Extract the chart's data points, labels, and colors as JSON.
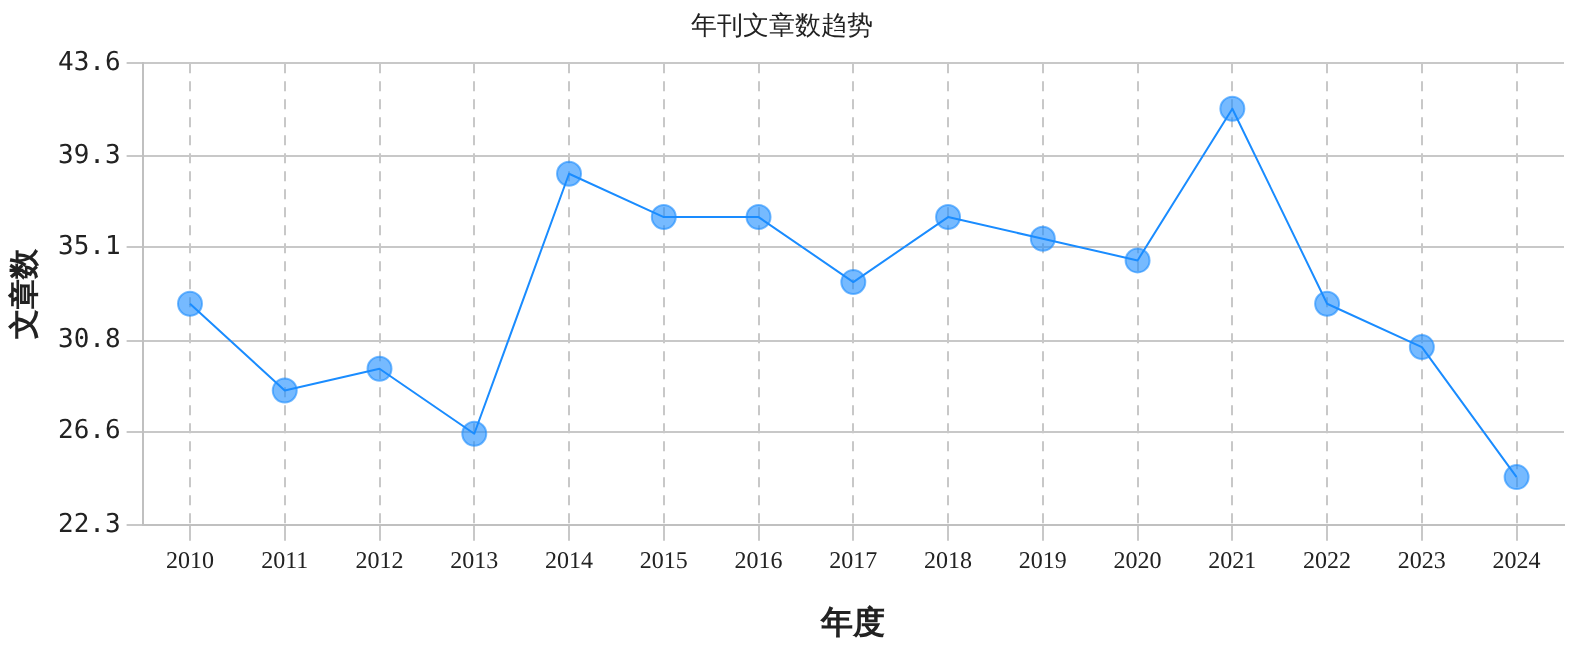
{
  "chart_data": {
    "type": "line",
    "title": "年刊文章数趋势",
    "xlabel": "年度",
    "ylabel": "文章数",
    "categories": [
      "2010",
      "2011",
      "2012",
      "2013",
      "2014",
      "2015",
      "2016",
      "2017",
      "2018",
      "2019",
      "2020",
      "2021",
      "2022",
      "2023",
      "2024"
    ],
    "series": [
      {
        "color": "#1a8cff",
        "values": [
          32.5,
          28.5,
          29.5,
          26.5,
          38.5,
          36.5,
          36.5,
          33.5,
          36.5,
          35.5,
          34.5,
          41.5,
          32.5,
          30.5,
          24.5
        ]
      }
    ],
    "ylim": [
      22.3,
      43.6
    ],
    "yticks": [
      22.3,
      26.6,
      30.8,
      35.1,
      39.3,
      43.6
    ],
    "grid": true,
    "legend": false,
    "marker": "circle",
    "line_style": "solid"
  }
}
